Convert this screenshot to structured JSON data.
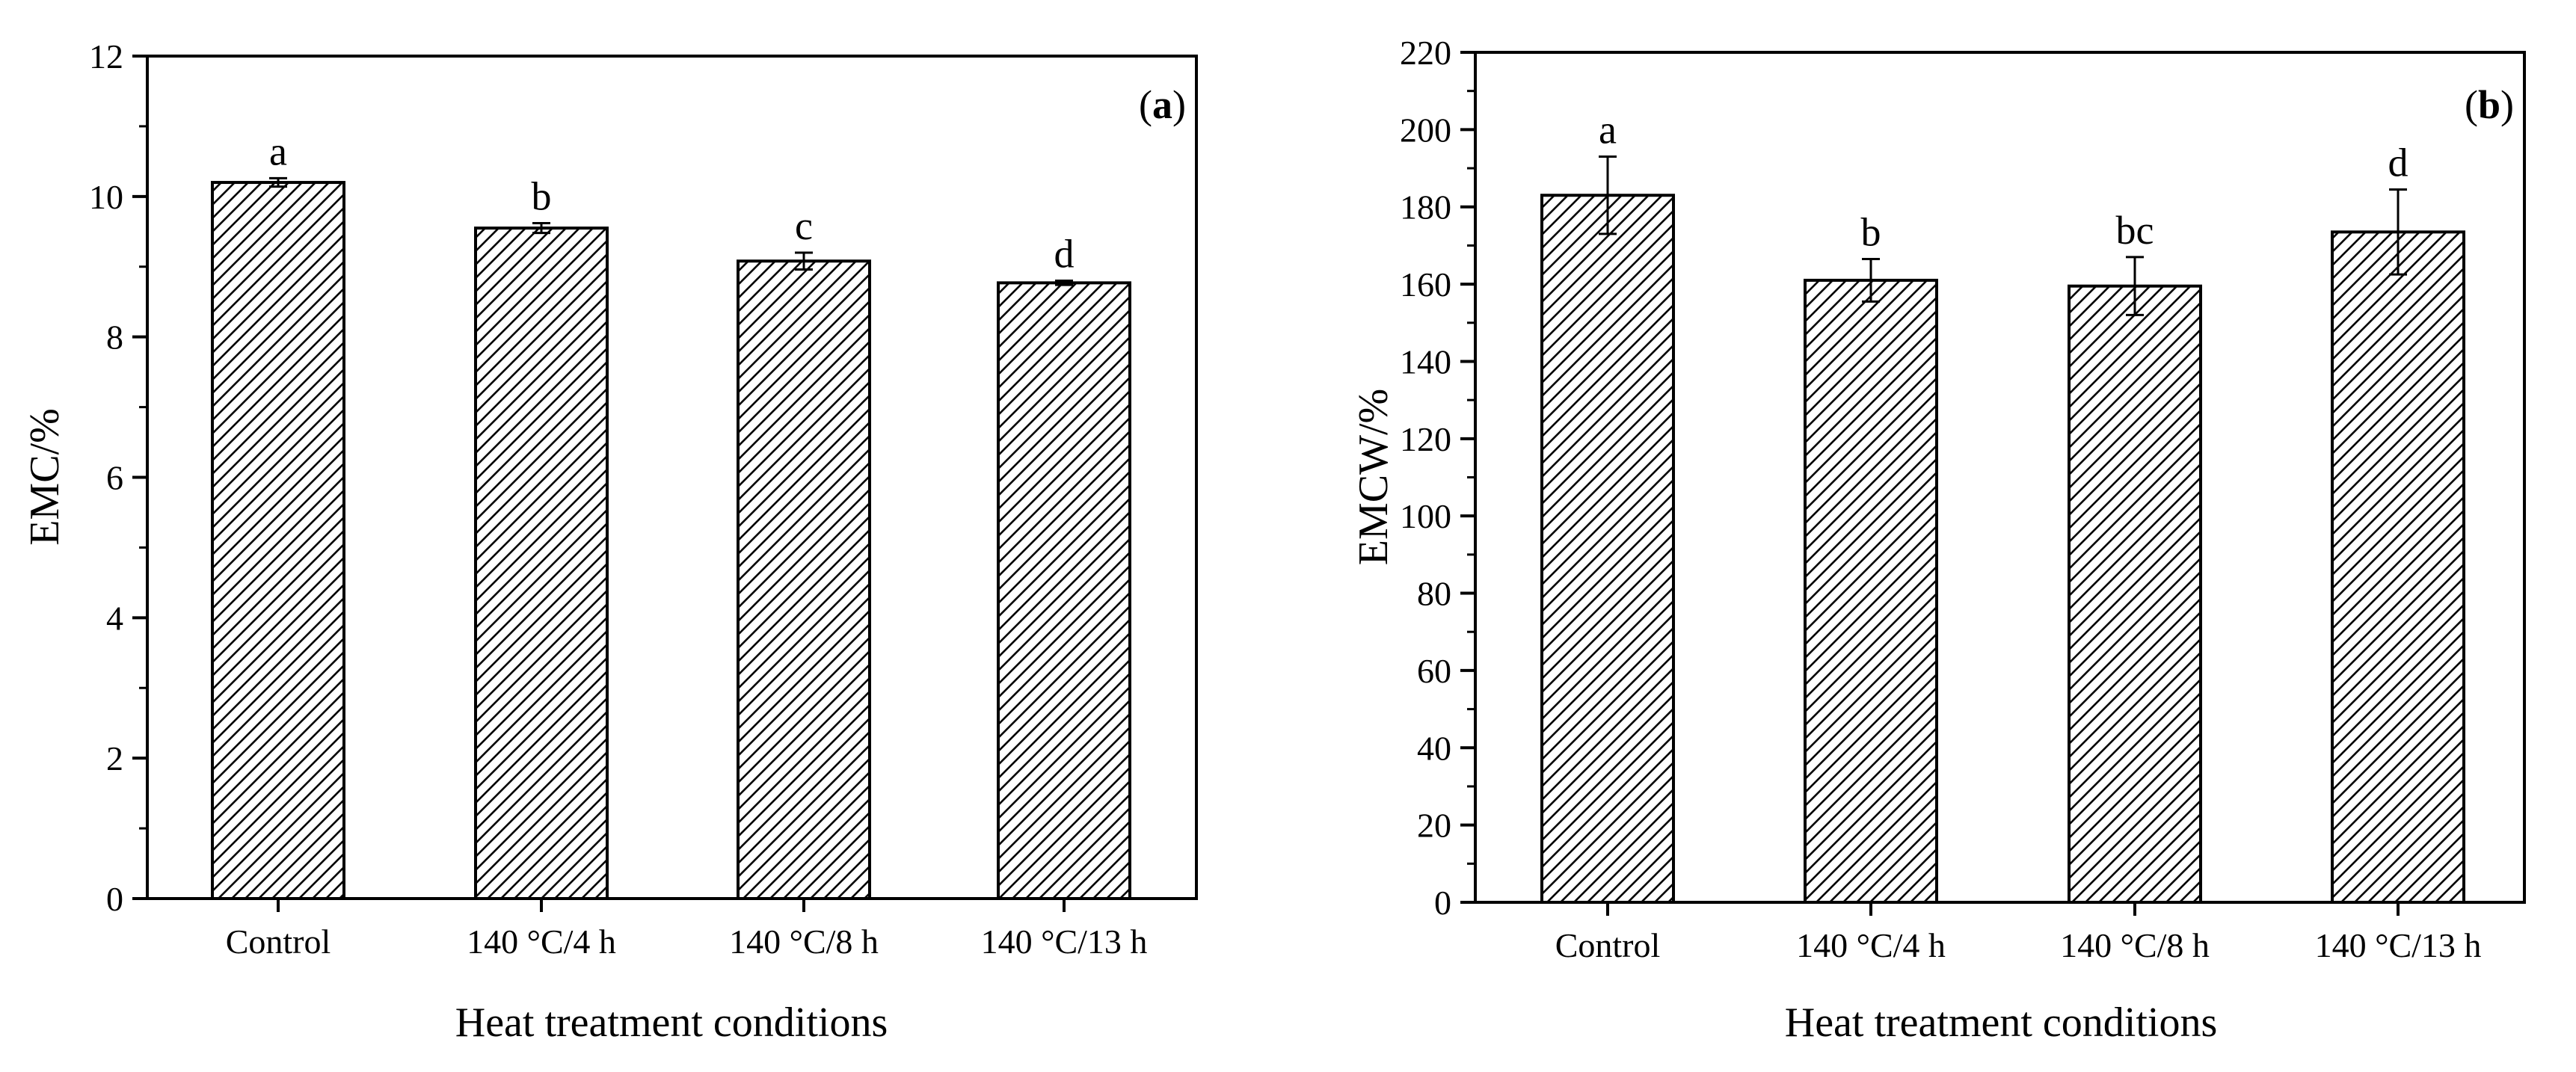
{
  "chart_data": [
    {
      "type": "bar",
      "panel_label": "a",
      "categories": [
        "Control",
        "140 °C/4 h",
        "140 °C/8 h",
        "140 °C/13 h"
      ],
      "values": [
        10.2,
        9.55,
        9.08,
        8.77
      ],
      "errors": [
        0.06,
        0.07,
        0.12,
        0.03
      ],
      "significance": [
        "a",
        "b",
        "c",
        "d"
      ],
      "xlabel": "Heat treatment conditions",
      "ylabel": "EMC/%",
      "ylim": [
        0,
        12
      ],
      "yticks": [
        0,
        2,
        4,
        6,
        8,
        10,
        12
      ],
      "grid": false,
      "pattern": "diagonal hatch",
      "bar_color": "#ffffff",
      "line_color": "#000000"
    },
    {
      "type": "bar",
      "panel_label": "b",
      "categories": [
        "Control",
        "140 °C/4 h",
        "140 °C/8 h",
        "140 °C/13 h"
      ],
      "values": [
        183,
        161,
        159.5,
        173.5
      ],
      "errors": [
        10,
        5.5,
        7.5,
        11
      ],
      "significance": [
        "a",
        "b",
        "bc",
        "d"
      ],
      "xlabel": "Heat treatment conditions",
      "ylabel": "EMCW/%",
      "ylim": [
        0,
        220
      ],
      "yticks": [
        0,
        20,
        40,
        60,
        80,
        100,
        120,
        140,
        160,
        180,
        200,
        220
      ],
      "grid": false,
      "pattern": "diagonal hatch",
      "bar_color": "#ffffff",
      "line_color": "#000000"
    }
  ]
}
